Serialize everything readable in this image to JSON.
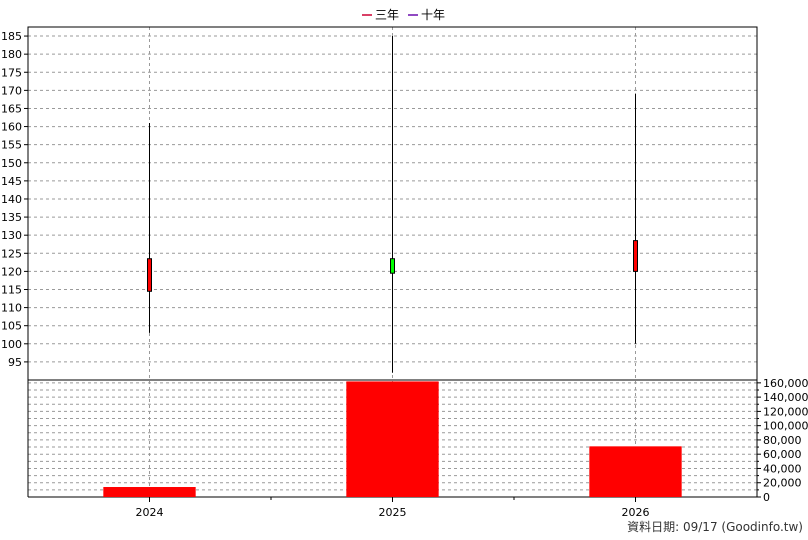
{
  "legend": [
    {
      "label": "三年",
      "color": "#cc0033"
    },
    {
      "label": "十年",
      "color": "#6a0dad"
    }
  ],
  "footer": "資料日期: 09/17  (Goodinfo.tw)",
  "chart_data": [
    {
      "type": "candlestick",
      "categories": [
        "2024",
        "2025",
        "2026"
      ],
      "candles": [
        {
          "x": "2024",
          "open": 123.5,
          "close": 114.5,
          "high": 161,
          "low": 103,
          "color": "#ff0000"
        },
        {
          "x": "2025",
          "open": 119.5,
          "close": 123.5,
          "high": 185,
          "low": 92,
          "color": "#00ff00"
        },
        {
          "x": "2026",
          "open": 128.5,
          "close": 120,
          "high": 169,
          "low": 100,
          "color": "#ff0000"
        }
      ],
      "ylim": [
        90,
        187.5
      ],
      "yticks": [
        95,
        100,
        105,
        110,
        115,
        120,
        125,
        130,
        135,
        140,
        145,
        150,
        155,
        160,
        165,
        170,
        175,
        180,
        185
      ],
      "grid": true
    },
    {
      "type": "bar",
      "categories": [
        "2024",
        "2025",
        "2026"
      ],
      "values": [
        14000,
        162000,
        71000
      ],
      "color": "#ff0000",
      "ylim": [
        0,
        164000
      ],
      "yticks": [
        0,
        20000,
        40000,
        60000,
        80000,
        100000,
        120000,
        140000,
        160000
      ],
      "ytick_labels": [
        "0",
        "20,000",
        "40,000",
        "60,000",
        "80,000",
        "100,000",
        "120,000",
        "140,000",
        "160,000"
      ],
      "grid": true
    }
  ]
}
